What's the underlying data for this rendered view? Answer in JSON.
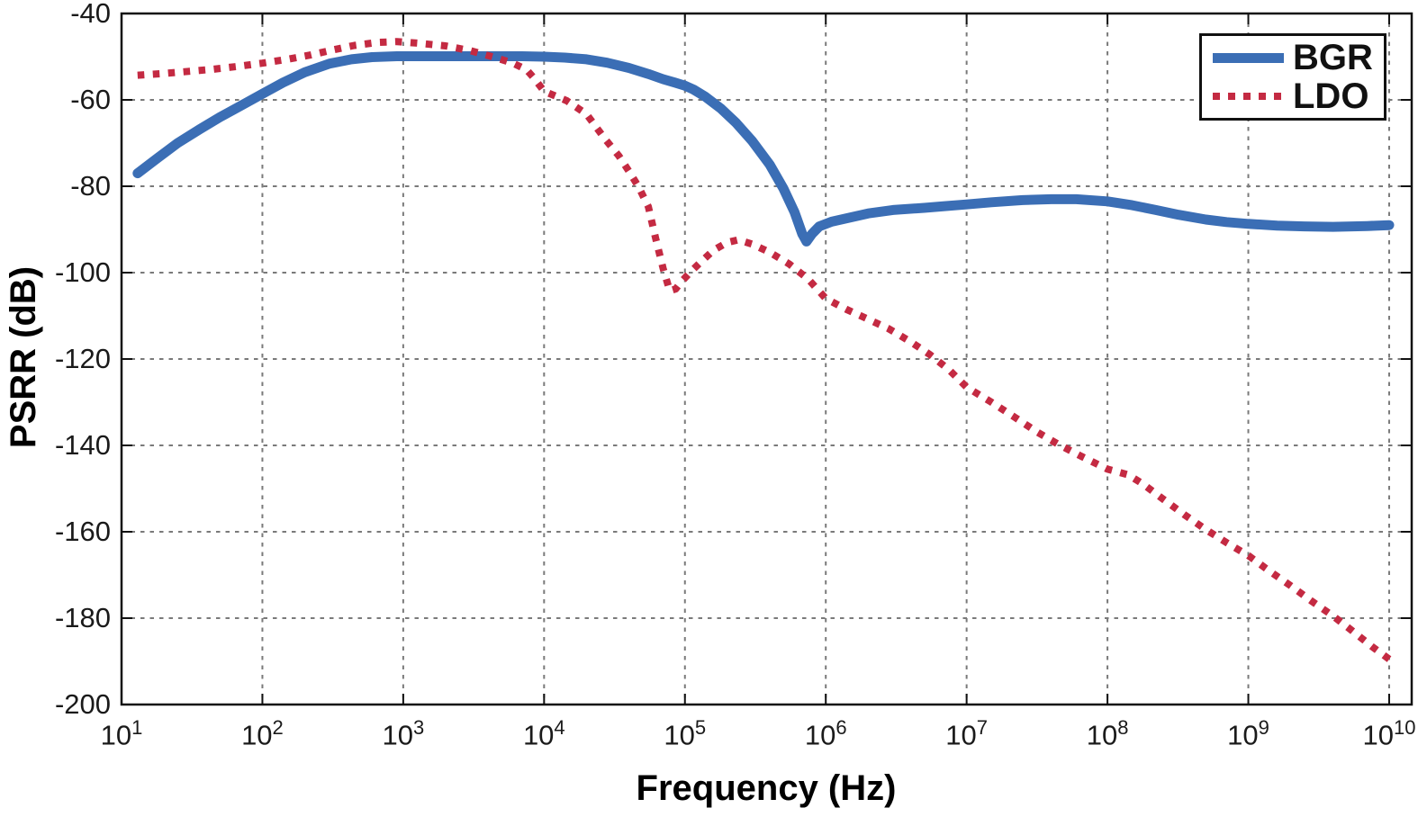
{
  "chart_data": {
    "type": "line",
    "title": "",
    "xlabel": "Frequency (Hz)",
    "ylabel": "PSRR (dB)",
    "x_scale": "log",
    "x_tick_label_base": "10",
    "x_tick_exponents": [
      1,
      2,
      3,
      4,
      5,
      6,
      7,
      8,
      9,
      10
    ],
    "xlim_exponents": [
      1,
      10.16
    ],
    "ylim": [
      -200,
      -40
    ],
    "y_ticks": [
      -200,
      -180,
      -160,
      -140,
      -120,
      -100,
      -80,
      -60,
      -40
    ],
    "grid": "dotted",
    "grid_color": "#7a7a7a",
    "axis_color": "#111111",
    "legend": {
      "position": "top-right",
      "entries": [
        "BGR",
        "LDO"
      ]
    },
    "series": [
      {
        "name": "BGR",
        "color": "#3b6eb5",
        "line_style": "solid",
        "line_width": 11,
        "points": [
          [
            13,
            -77
          ],
          [
            18,
            -73.5
          ],
          [
            25,
            -70
          ],
          [
            36,
            -66.8
          ],
          [
            50,
            -64
          ],
          [
            70,
            -61.4
          ],
          [
            100,
            -58.6
          ],
          [
            140,
            -56
          ],
          [
            200,
            -53.6
          ],
          [
            300,
            -51.6
          ],
          [
            430,
            -50.6
          ],
          [
            600,
            -50.1
          ],
          [
            900,
            -49.9
          ],
          [
            1500,
            -49.9
          ],
          [
            2500,
            -49.9
          ],
          [
            4000,
            -49.9
          ],
          [
            7000,
            -49.9
          ],
          [
            10000,
            -50
          ],
          [
            14000,
            -50.2
          ],
          [
            20000,
            -50.6
          ],
          [
            28000,
            -51.4
          ],
          [
            40000,
            -52.6
          ],
          [
            55000,
            -54
          ],
          [
            70000,
            -55.2
          ],
          [
            85000,
            -56
          ],
          [
            100000,
            -56.7
          ],
          [
            115000,
            -57.6
          ],
          [
            140000,
            -59.3
          ],
          [
            180000,
            -62
          ],
          [
            230000,
            -65.3
          ],
          [
            300000,
            -69.5
          ],
          [
            400000,
            -75
          ],
          [
            500000,
            -80.5
          ],
          [
            600000,
            -86
          ],
          [
            680000,
            -91
          ],
          [
            730000,
            -92.8
          ],
          [
            800000,
            -91
          ],
          [
            900000,
            -89.3
          ],
          [
            1100000,
            -88.2
          ],
          [
            1500000,
            -87.2
          ],
          [
            2000000,
            -86.3
          ],
          [
            3000000,
            -85.5
          ],
          [
            5000000,
            -85
          ],
          [
            7000000,
            -84.6
          ],
          [
            10000000,
            -84.2
          ],
          [
            15000000,
            -83.7
          ],
          [
            25000000,
            -83.2
          ],
          [
            40000000,
            -83
          ],
          [
            60000000,
            -83
          ],
          [
            100000000,
            -83.5
          ],
          [
            150000000,
            -84.4
          ],
          [
            220000000,
            -85.5
          ],
          [
            320000000,
            -86.6
          ],
          [
            500000000,
            -87.7
          ],
          [
            700000000,
            -88.3
          ],
          [
            1000000000,
            -88.7
          ],
          [
            1600000000,
            -89.1
          ],
          [
            2500000000,
            -89.3
          ],
          [
            4000000000,
            -89.4
          ],
          [
            7000000000,
            -89.2
          ],
          [
            10000000000,
            -89
          ]
        ]
      },
      {
        "name": "LDO",
        "color": "#c42a42",
        "line_style": "dotted",
        "line_width": 8,
        "points": [
          [
            13,
            -54.3
          ],
          [
            20,
            -53.9
          ],
          [
            30,
            -53.4
          ],
          [
            45,
            -52.9
          ],
          [
            65,
            -52.3
          ],
          [
            100,
            -51.5
          ],
          [
            150,
            -50.6
          ],
          [
            220,
            -49.6
          ],
          [
            320,
            -48.4
          ],
          [
            450,
            -47.4
          ],
          [
            650,
            -46.7
          ],
          [
            900,
            -46.5
          ],
          [
            1300,
            -46.9
          ],
          [
            2000,
            -47.5
          ],
          [
            3000,
            -48.6
          ],
          [
            4500,
            -50.2
          ],
          [
            6000,
            -51.5
          ],
          [
            7500,
            -53
          ],
          [
            8500,
            -55
          ],
          [
            10000,
            -58
          ],
          [
            14500,
            -60.2
          ],
          [
            20000,
            -63.3
          ],
          [
            27000,
            -69
          ],
          [
            34000,
            -73
          ],
          [
            40000,
            -76.5
          ],
          [
            47000,
            -80.2
          ],
          [
            55000,
            -84.7
          ],
          [
            62000,
            -92.1
          ],
          [
            70000,
            -99
          ],
          [
            78000,
            -104.2
          ],
          [
            86000,
            -103.8
          ],
          [
            95000,
            -102
          ],
          [
            110000,
            -99.8
          ],
          [
            130000,
            -97.5
          ],
          [
            160000,
            -94.8
          ],
          [
            200000,
            -93
          ],
          [
            240000,
            -92.4
          ],
          [
            300000,
            -93.4
          ],
          [
            400000,
            -95.3
          ],
          [
            550000,
            -98
          ],
          [
            750000,
            -101.5
          ],
          [
            1000000,
            -106
          ],
          [
            1400000,
            -108.5
          ],
          [
            2000000,
            -110.8
          ],
          [
            2800000,
            -113
          ],
          [
            4000000,
            -116
          ],
          [
            5500000,
            -119
          ],
          [
            7500000,
            -122.5
          ],
          [
            10000000,
            -126.5
          ],
          [
            15000000,
            -130
          ],
          [
            22000000,
            -133.5
          ],
          [
            32000000,
            -137
          ],
          [
            45000000,
            -139.8
          ],
          [
            65000000,
            -142.5
          ],
          [
            100000000,
            -145.5
          ],
          [
            140000000,
            -146.8
          ],
          [
            180000000,
            -149
          ],
          [
            250000000,
            -152.5
          ],
          [
            350000000,
            -156
          ],
          [
            500000000,
            -159.5
          ],
          [
            700000000,
            -162.5
          ],
          [
            1000000000,
            -165.5
          ],
          [
            1400000000,
            -169
          ],
          [
            2000000000,
            -172.5
          ],
          [
            2800000000,
            -176
          ],
          [
            4000000000,
            -179.5
          ],
          [
            5500000000,
            -183
          ],
          [
            7500000000,
            -186.5
          ],
          [
            10000000000,
            -189.5
          ]
        ]
      }
    ]
  }
}
